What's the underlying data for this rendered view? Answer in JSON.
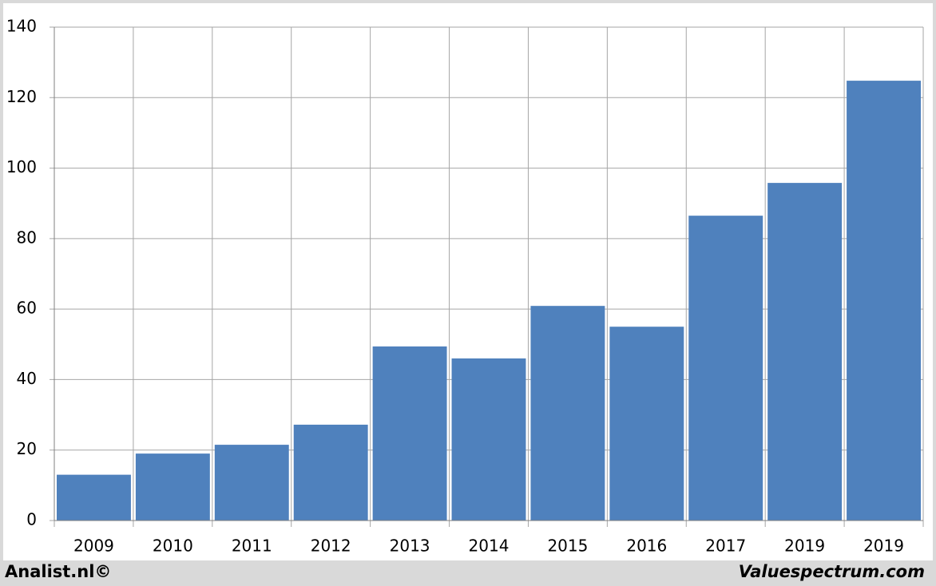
{
  "chart_data": {
    "type": "bar",
    "categories": [
      "2009",
      "2010",
      "2011",
      "2012",
      "2013",
      "2014",
      "2015",
      "2016",
      "2017",
      "2019",
      "2019"
    ],
    "values": [
      13,
      19,
      21.5,
      27.2,
      49.4,
      46,
      60.9,
      55,
      86.5,
      95.8,
      124.8
    ],
    "color": "#4f81bd",
    "ylim": [
      0,
      140
    ],
    "yticks": [
      0,
      20,
      40,
      60,
      80,
      100,
      120,
      140
    ],
    "grid": true
  },
  "footer": {
    "left": "Analist.nl©",
    "right": "Valuespectrum.com"
  }
}
